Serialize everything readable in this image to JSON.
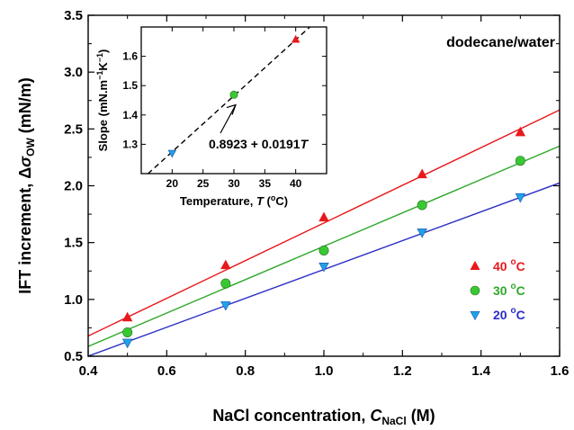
{
  "chart_data": [
    {
      "type": "scatter",
      "annotation": "dodecane/water",
      "xlabel": {
        "text": "NaCl concentration, ",
        "italic": "C",
        "sub": "NaCl",
        "unit": " (M)"
      },
      "ylabel": {
        "text": "IFT increment, Δ",
        "italic": "σ",
        "sub": "OW",
        "unit": " (mN/m)"
      },
      "xlim": [
        0.4,
        1.6
      ],
      "ylim": [
        0.5,
        3.5
      ],
      "xticks": [
        "0.4",
        "0.6",
        "0.8",
        "1.0",
        "1.2",
        "1.4",
        "1.6"
      ],
      "yticks": [
        "0.5",
        "1.0",
        "1.5",
        "2.0",
        "2.5",
        "3.0",
        "3.5"
      ],
      "x": [
        0.5,
        0.75,
        1.0,
        1.25,
        1.5
      ],
      "legend_position": "bottom-right",
      "series": [
        {
          "name": "40 °C",
          "label_base": "40 ",
          "label_sup": "o",
          "label_end": "C",
          "marker": "triangle-up",
          "color": "#e8191b",
          "values": [
            0.84,
            1.3,
            1.72,
            2.1,
            2.47
          ],
          "fit": {
            "slope": 1.657,
            "intercept": 0.0154
          }
        },
        {
          "name": "30 °C",
          "label_base": "30 ",
          "label_sup": "o",
          "label_end": "C",
          "marker": "circle",
          "color": "#38c932",
          "values": [
            0.71,
            1.14,
            1.43,
            1.83,
            2.22
          ],
          "fit": {
            "slope": 1.469,
            "intercept": -0.0014
          }
        },
        {
          "name": "20 °C",
          "label_base": "20 ",
          "label_sup": "o",
          "label_end": "C",
          "marker": "triangle-down",
          "color": "#1fa3e6",
          "values": [
            0.62,
            0.95,
            1.29,
            1.59,
            1.9
          ],
          "fit": {
            "slope": 1.27,
            "intercept": -0.007
          }
        }
      ],
      "fit_line_colors": [
        "#e8191b",
        "#2ea82a",
        "#2b2fc4"
      ]
    },
    {
      "type": "scatter",
      "placement": "inset top-left",
      "xlabel": {
        "text": "Temperature, ",
        "italic": "T",
        "unit_base": " (",
        "unit_sup": "o",
        "unit_end": "C)"
      },
      "ylabel": {
        "text": "Slope (mN.m",
        "sup1": "−1",
        "mid": "K",
        "sup2": "−1",
        "end": ")"
      },
      "xlim": [
        15,
        45
      ],
      "ylim": [
        1.2,
        1.7
      ],
      "xticks": [
        "20",
        "25",
        "30",
        "35",
        "40"
      ],
      "yticks": [
        "1.3",
        "1.4",
        "1.5",
        "1.6"
      ],
      "points": [
        {
          "x": 20,
          "y": 1.27,
          "color": "#1fa3e6",
          "marker": "triangle-down"
        },
        {
          "x": 30,
          "y": 1.469,
          "color": "#38c932",
          "marker": "circle"
        },
        {
          "x": 40,
          "y": 1.657,
          "color": "#e8191b",
          "marker": "triangle-up"
        }
      ],
      "fit": {
        "slope": 0.0191,
        "intercept": 0.8923,
        "style": "dashed"
      },
      "equation": {
        "text": "0.8923 + 0.0191",
        "italic": "T"
      }
    }
  ]
}
